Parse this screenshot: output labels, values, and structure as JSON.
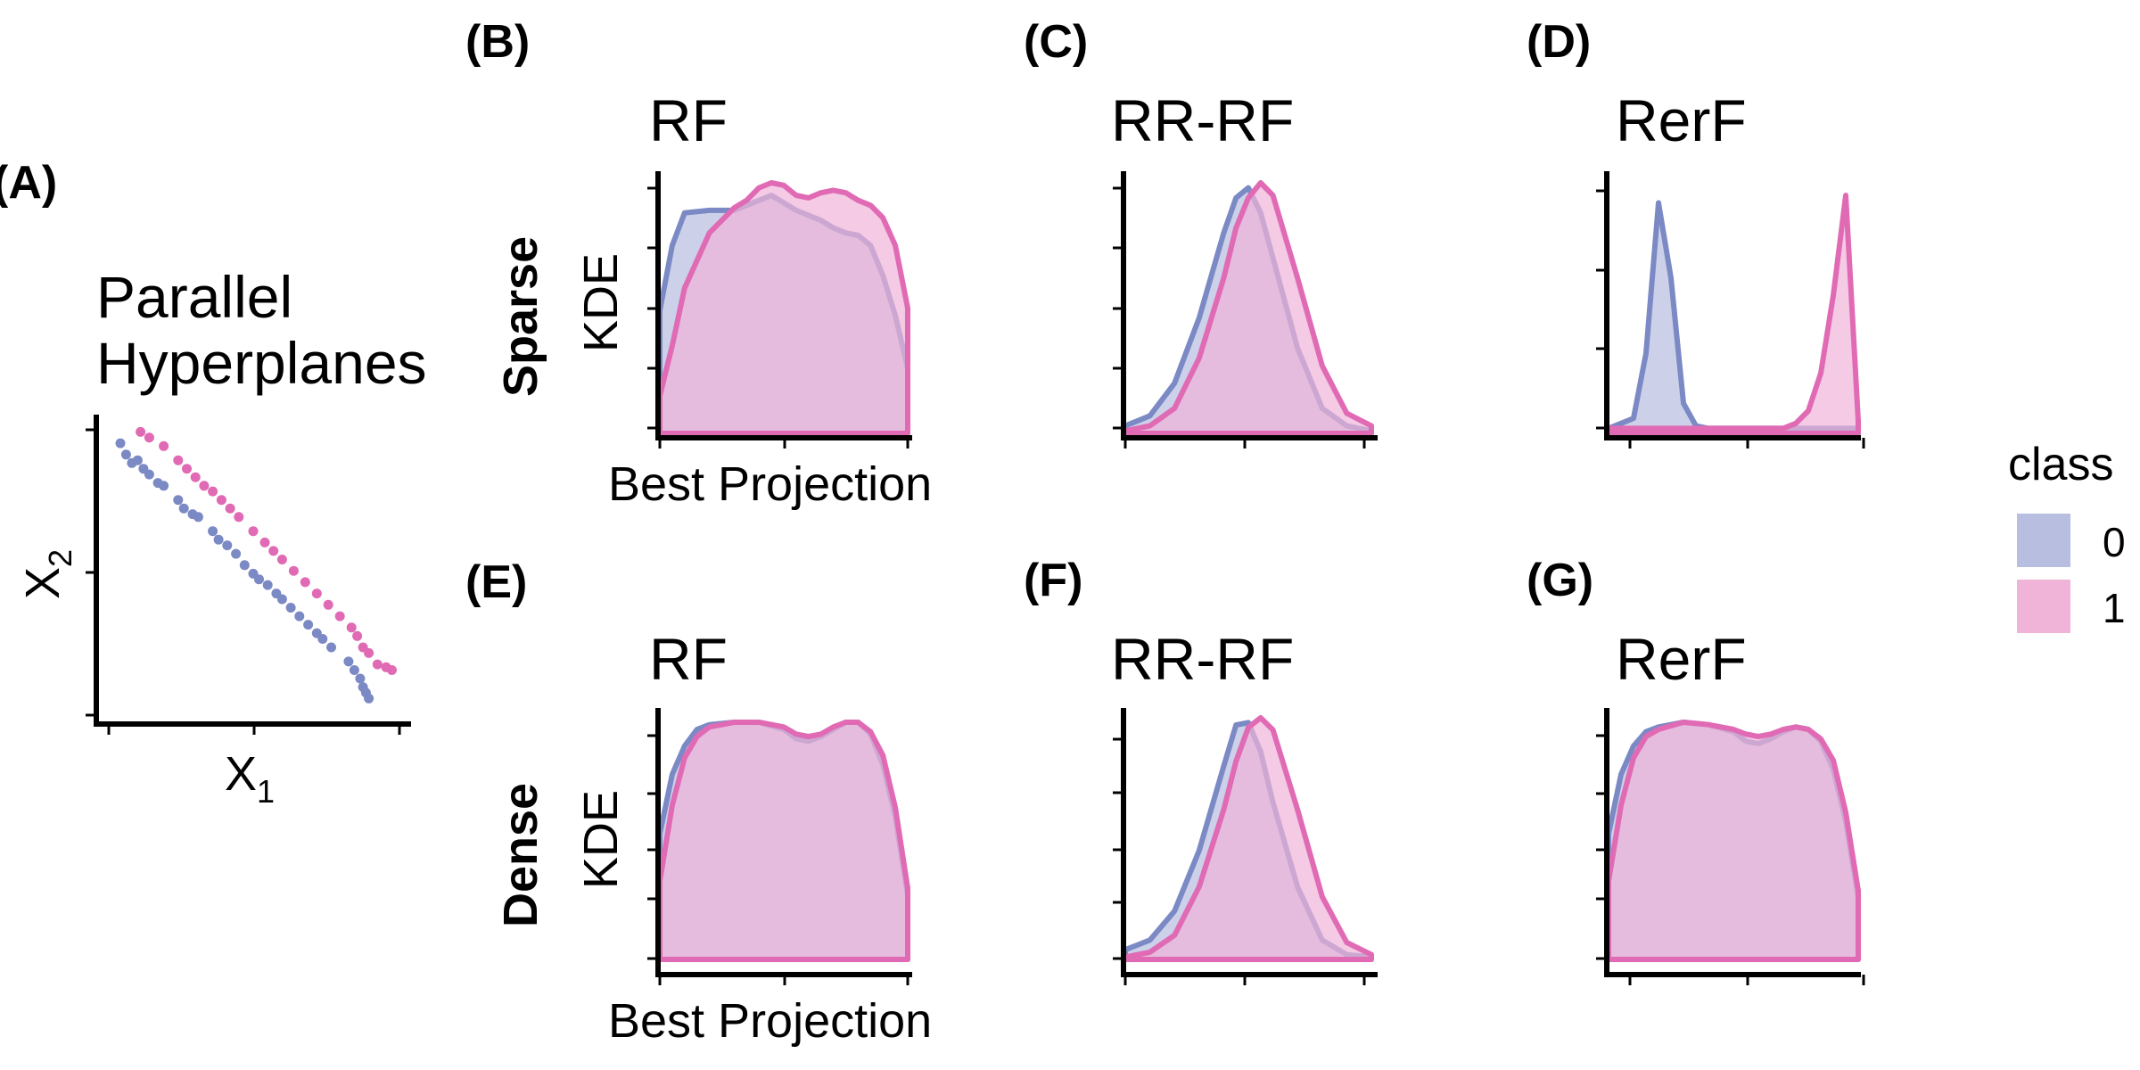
{
  "colors": {
    "class0": "#7b89c4",
    "class1": "#e06ab4",
    "fill0": "#b7bedf",
    "fill1": "#efb4d8"
  },
  "panel_a": {
    "letter": "(A)",
    "title_line1": "Parallel",
    "title_line2": "Hyperplanes",
    "xlabel": "X",
    "xlabel_sub": "1",
    "ylabel": "X",
    "ylabel_sub": "2"
  },
  "row_labels": {
    "sparse": "Sparse",
    "dense": "Dense"
  },
  "axis_labels": {
    "x": "Best Projection",
    "y": "KDE"
  },
  "legend": {
    "title": "class",
    "items": [
      {
        "label": "0"
      },
      {
        "label": "1"
      }
    ]
  },
  "chart_data": [
    {
      "type": "scatter",
      "id": "A",
      "title": "Parallel Hyperplanes",
      "xlabel": "X1",
      "ylabel": "X2",
      "xlim": [
        0,
        1
      ],
      "ylim": [
        0,
        1
      ],
      "series": [
        {
          "name": "0",
          "points": [
            [
              0.04,
              0.94
            ],
            [
              0.06,
              0.9
            ],
            [
              0.08,
              0.87
            ],
            [
              0.1,
              0.88
            ],
            [
              0.12,
              0.85
            ],
            [
              0.14,
              0.83
            ],
            [
              0.17,
              0.8
            ],
            [
              0.19,
              0.79
            ],
            [
              0.24,
              0.74
            ],
            [
              0.26,
              0.71
            ],
            [
              0.29,
              0.69
            ],
            [
              0.31,
              0.68
            ],
            [
              0.36,
              0.63
            ],
            [
              0.38,
              0.6
            ],
            [
              0.41,
              0.58
            ],
            [
              0.44,
              0.55
            ],
            [
              0.47,
              0.51
            ],
            [
              0.5,
              0.48
            ],
            [
              0.52,
              0.46
            ],
            [
              0.55,
              0.44
            ],
            [
              0.58,
              0.41
            ],
            [
              0.6,
              0.39
            ],
            [
              0.63,
              0.36
            ],
            [
              0.66,
              0.33
            ],
            [
              0.69,
              0.3
            ],
            [
              0.72,
              0.27
            ],
            [
              0.74,
              0.25
            ],
            [
              0.77,
              0.22
            ],
            [
              0.83,
              0.17
            ],
            [
              0.85,
              0.14
            ],
            [
              0.87,
              0.11
            ],
            [
              0.88,
              0.08
            ],
            [
              0.89,
              0.06
            ],
            [
              0.9,
              0.04
            ]
          ]
        },
        {
          "name": "1",
          "points": [
            [
              0.11,
              0.98
            ],
            [
              0.14,
              0.96
            ],
            [
              0.19,
              0.93
            ],
            [
              0.24,
              0.88
            ],
            [
              0.27,
              0.85
            ],
            [
              0.3,
              0.82
            ],
            [
              0.33,
              0.79
            ],
            [
              0.36,
              0.77
            ],
            [
              0.39,
              0.74
            ],
            [
              0.42,
              0.71
            ],
            [
              0.45,
              0.68
            ],
            [
              0.5,
              0.63
            ],
            [
              0.54,
              0.59
            ],
            [
              0.57,
              0.56
            ],
            [
              0.6,
              0.53
            ],
            [
              0.64,
              0.49
            ],
            [
              0.68,
              0.45
            ],
            [
              0.72,
              0.41
            ],
            [
              0.76,
              0.37
            ],
            [
              0.8,
              0.33
            ],
            [
              0.84,
              0.29
            ],
            [
              0.86,
              0.26
            ],
            [
              0.88,
              0.22
            ],
            [
              0.9,
              0.2
            ],
            [
              0.93,
              0.16
            ],
            [
              0.96,
              0.15
            ],
            [
              0.98,
              0.14
            ]
          ]
        }
      ]
    },
    {
      "type": "area",
      "id": "B",
      "letter": "(B)",
      "title": "RF",
      "row": "Sparse",
      "show_xlabel": true,
      "show_ylabel": true,
      "xlim": [
        0,
        1
      ],
      "ylim": [
        0,
        1
      ],
      "x": [
        0,
        0.05,
        0.1,
        0.2,
        0.3,
        0.35,
        0.4,
        0.45,
        0.5,
        0.55,
        0.6,
        0.65,
        0.7,
        0.75,
        0.8,
        0.85,
        0.9,
        0.95,
        1
      ],
      "series": [
        {
          "name": "0",
          "values": [
            0.49,
            0.75,
            0.88,
            0.89,
            0.89,
            0.91,
            0.93,
            0.95,
            0.92,
            0.89,
            0.87,
            0.85,
            0.82,
            0.8,
            0.79,
            0.75,
            0.63,
            0.47,
            0.26
          ]
        },
        {
          "name": "1",
          "values": [
            0.15,
            0.35,
            0.58,
            0.8,
            0.9,
            0.93,
            0.98,
            1.0,
            0.99,
            0.95,
            0.94,
            0.96,
            0.97,
            0.96,
            0.93,
            0.91,
            0.86,
            0.75,
            0.5
          ]
        }
      ]
    },
    {
      "type": "area",
      "id": "C",
      "letter": "(C)",
      "title": "RR-RF",
      "row": "Sparse",
      "show_xlabel": false,
      "show_ylabel": false,
      "xlim": [
        0,
        1
      ],
      "ylim": [
        0,
        1
      ],
      "x": [
        0,
        0.1,
        0.2,
        0.3,
        0.4,
        0.45,
        0.5,
        0.55,
        0.6,
        0.7,
        0.8,
        0.9,
        1
      ],
      "series": [
        {
          "name": "0",
          "values": [
            0.03,
            0.07,
            0.2,
            0.46,
            0.8,
            0.94,
            0.98,
            0.88,
            0.7,
            0.34,
            0.1,
            0.03,
            0.01
          ]
        },
        {
          "name": "1",
          "values": [
            0.01,
            0.03,
            0.1,
            0.3,
            0.62,
            0.82,
            0.94,
            1.0,
            0.95,
            0.62,
            0.27,
            0.08,
            0.03
          ]
        }
      ]
    },
    {
      "type": "area",
      "id": "D",
      "letter": "(D)",
      "title": "RerF",
      "row": "Sparse",
      "show_xlabel": false,
      "show_ylabel": false,
      "xlim": [
        0,
        1
      ],
      "ylim": [
        0,
        1
      ],
      "x": [
        0,
        0.05,
        0.1,
        0.15,
        0.2,
        0.25,
        0.3,
        0.35,
        0.4,
        0.5,
        0.6,
        0.65,
        0.7,
        0.75,
        0.8,
        0.85,
        0.9,
        0.95,
        1
      ],
      "series": [
        {
          "name": "0",
          "values": [
            0.02,
            0.04,
            0.06,
            0.32,
            0.92,
            0.62,
            0.12,
            0.03,
            0.02,
            0.02,
            0.02,
            0.02,
            0.02,
            0.02,
            0.02,
            0.02,
            0.02,
            0.02,
            0.02
          ]
        },
        {
          "name": "1",
          "values": [
            0.02,
            0.02,
            0.02,
            0.02,
            0.02,
            0.02,
            0.02,
            0.02,
            0.02,
            0.02,
            0.02,
            0.02,
            0.02,
            0.04,
            0.09,
            0.24,
            0.55,
            0.95,
            0.05
          ]
        }
      ]
    },
    {
      "type": "area",
      "id": "E",
      "letter": "(E)",
      "title": "RF",
      "row": "Dense",
      "show_xlabel": true,
      "show_ylabel": true,
      "xlim": [
        0,
        1
      ],
      "ylim": [
        0,
        1
      ],
      "x": [
        0,
        0.05,
        0.1,
        0.15,
        0.2,
        0.3,
        0.4,
        0.5,
        0.55,
        0.6,
        0.65,
        0.7,
        0.75,
        0.8,
        0.85,
        0.9,
        0.95,
        1
      ],
      "series": [
        {
          "name": "0",
          "values": [
            0.53,
            0.78,
            0.9,
            0.97,
            0.99,
            1.0,
            1.0,
            0.97,
            0.93,
            0.92,
            0.94,
            0.97,
            1.0,
            1.0,
            0.95,
            0.82,
            0.6,
            0.27
          ]
        },
        {
          "name": "1",
          "values": [
            0.33,
            0.65,
            0.85,
            0.94,
            0.98,
            1.0,
            1.0,
            0.98,
            0.95,
            0.94,
            0.95,
            0.98,
            1.0,
            1.0,
            0.96,
            0.86,
            0.64,
            0.3
          ]
        }
      ]
    },
    {
      "type": "area",
      "id": "F",
      "letter": "(F)",
      "title": "RR-RF",
      "row": "Dense",
      "show_xlabel": false,
      "show_ylabel": false,
      "xlim": [
        0,
        1
      ],
      "ylim": [
        0,
        1
      ],
      "x": [
        0,
        0.1,
        0.2,
        0.3,
        0.4,
        0.45,
        0.5,
        0.55,
        0.6,
        0.7,
        0.8,
        0.9,
        1
      ],
      "series": [
        {
          "name": "0",
          "values": [
            0.04,
            0.08,
            0.2,
            0.45,
            0.8,
            0.97,
            0.98,
            0.86,
            0.65,
            0.3,
            0.08,
            0.02,
            0.01
          ]
        },
        {
          "name": "1",
          "values": [
            0.01,
            0.03,
            0.1,
            0.3,
            0.62,
            0.82,
            0.96,
            1.0,
            0.95,
            0.62,
            0.26,
            0.07,
            0.02
          ]
        }
      ]
    },
    {
      "type": "area",
      "id": "G",
      "letter": "(G)",
      "title": "RerF",
      "row": "Dense",
      "show_xlabel": false,
      "show_ylabel": false,
      "xlim": [
        0,
        1
      ],
      "ylim": [
        0,
        1
      ],
      "x": [
        0,
        0.05,
        0.1,
        0.15,
        0.2,
        0.3,
        0.4,
        0.5,
        0.55,
        0.6,
        0.65,
        0.7,
        0.75,
        0.8,
        0.85,
        0.9,
        0.95,
        1
      ],
      "series": [
        {
          "name": "0",
          "values": [
            0.53,
            0.78,
            0.9,
            0.96,
            0.98,
            1.0,
            0.99,
            0.96,
            0.92,
            0.91,
            0.93,
            0.96,
            0.98,
            0.97,
            0.92,
            0.8,
            0.58,
            0.26
          ]
        },
        {
          "name": "1",
          "values": [
            0.33,
            0.65,
            0.85,
            0.94,
            0.97,
            1.0,
            0.99,
            0.97,
            0.95,
            0.94,
            0.95,
            0.97,
            0.98,
            0.97,
            0.93,
            0.84,
            0.62,
            0.29
          ]
        }
      ]
    }
  ]
}
